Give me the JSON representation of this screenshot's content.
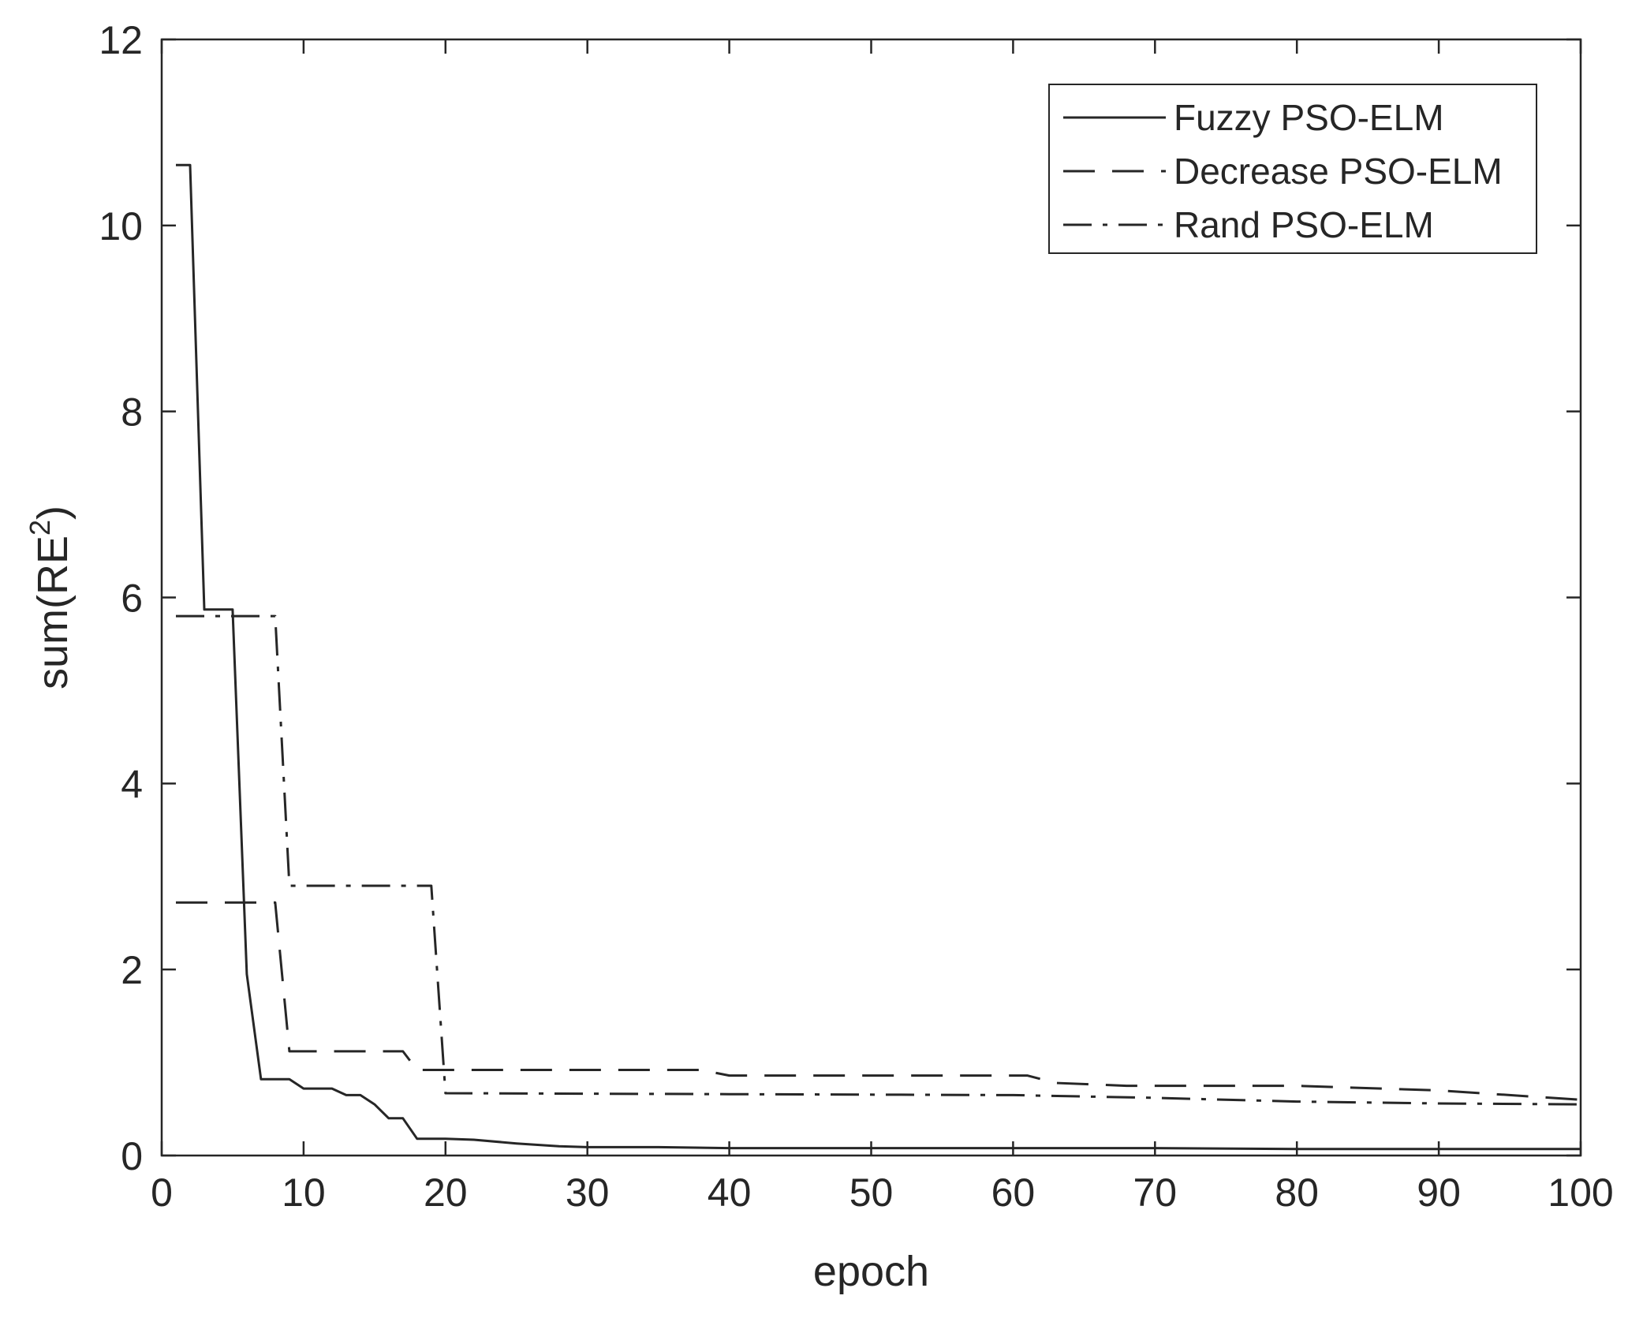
{
  "chart_data": {
    "type": "line",
    "xlabel": "epoch",
    "ylabel": "sum(RE",
    "ylabel_superscript": "2",
    "ylabel_close": ")",
    "xlim": [
      0,
      100
    ],
    "ylim": [
      0,
      12
    ],
    "xticks": [
      "0",
      "10",
      "20",
      "30",
      "40",
      "50",
      "60",
      "70",
      "80",
      "90",
      "100"
    ],
    "yticks": [
      "0",
      "2",
      "4",
      "6",
      "8",
      "10",
      "12"
    ],
    "grid": false,
    "legend_position": "top-right",
    "colors": {
      "line": "#262626",
      "axis": "#262626",
      "background": "#ffffff"
    },
    "series": [
      {
        "name": "Fuzzy PSO-ELM",
        "style": "solid",
        "x": [
          1,
          2,
          3,
          4,
          5,
          6,
          7,
          8,
          9,
          10,
          11,
          12,
          13,
          14,
          15,
          16,
          17,
          18,
          19,
          20,
          22,
          25,
          28,
          30,
          35,
          40,
          50,
          60,
          70,
          80,
          90,
          100
        ],
        "y": [
          10.65,
          10.65,
          5.87,
          5.87,
          5.87,
          1.95,
          0.82,
          0.82,
          0.82,
          0.72,
          0.72,
          0.72,
          0.65,
          0.65,
          0.55,
          0.4,
          0.4,
          0.18,
          0.18,
          0.18,
          0.17,
          0.13,
          0.1,
          0.09,
          0.09,
          0.08,
          0.08,
          0.08,
          0.08,
          0.07,
          0.07,
          0.07
        ]
      },
      {
        "name": "Decrease PSO-ELM",
        "style": "dashed",
        "x": [
          1,
          8,
          9,
          17,
          18,
          20,
          38,
          40,
          61,
          63,
          68,
          80,
          90,
          100
        ],
        "y": [
          2.72,
          2.72,
          1.12,
          1.12,
          0.92,
          0.92,
          0.92,
          0.86,
          0.86,
          0.78,
          0.75,
          0.75,
          0.7,
          0.6
        ]
      },
      {
        "name": "Rand PSO-ELM",
        "style": "dashdot",
        "x": [
          1,
          8,
          9,
          19,
          20,
          40,
          60,
          70,
          80,
          90,
          100
        ],
        "y": [
          5.8,
          5.8,
          2.9,
          2.9,
          0.67,
          0.66,
          0.65,
          0.62,
          0.58,
          0.56,
          0.55
        ]
      }
    ]
  }
}
